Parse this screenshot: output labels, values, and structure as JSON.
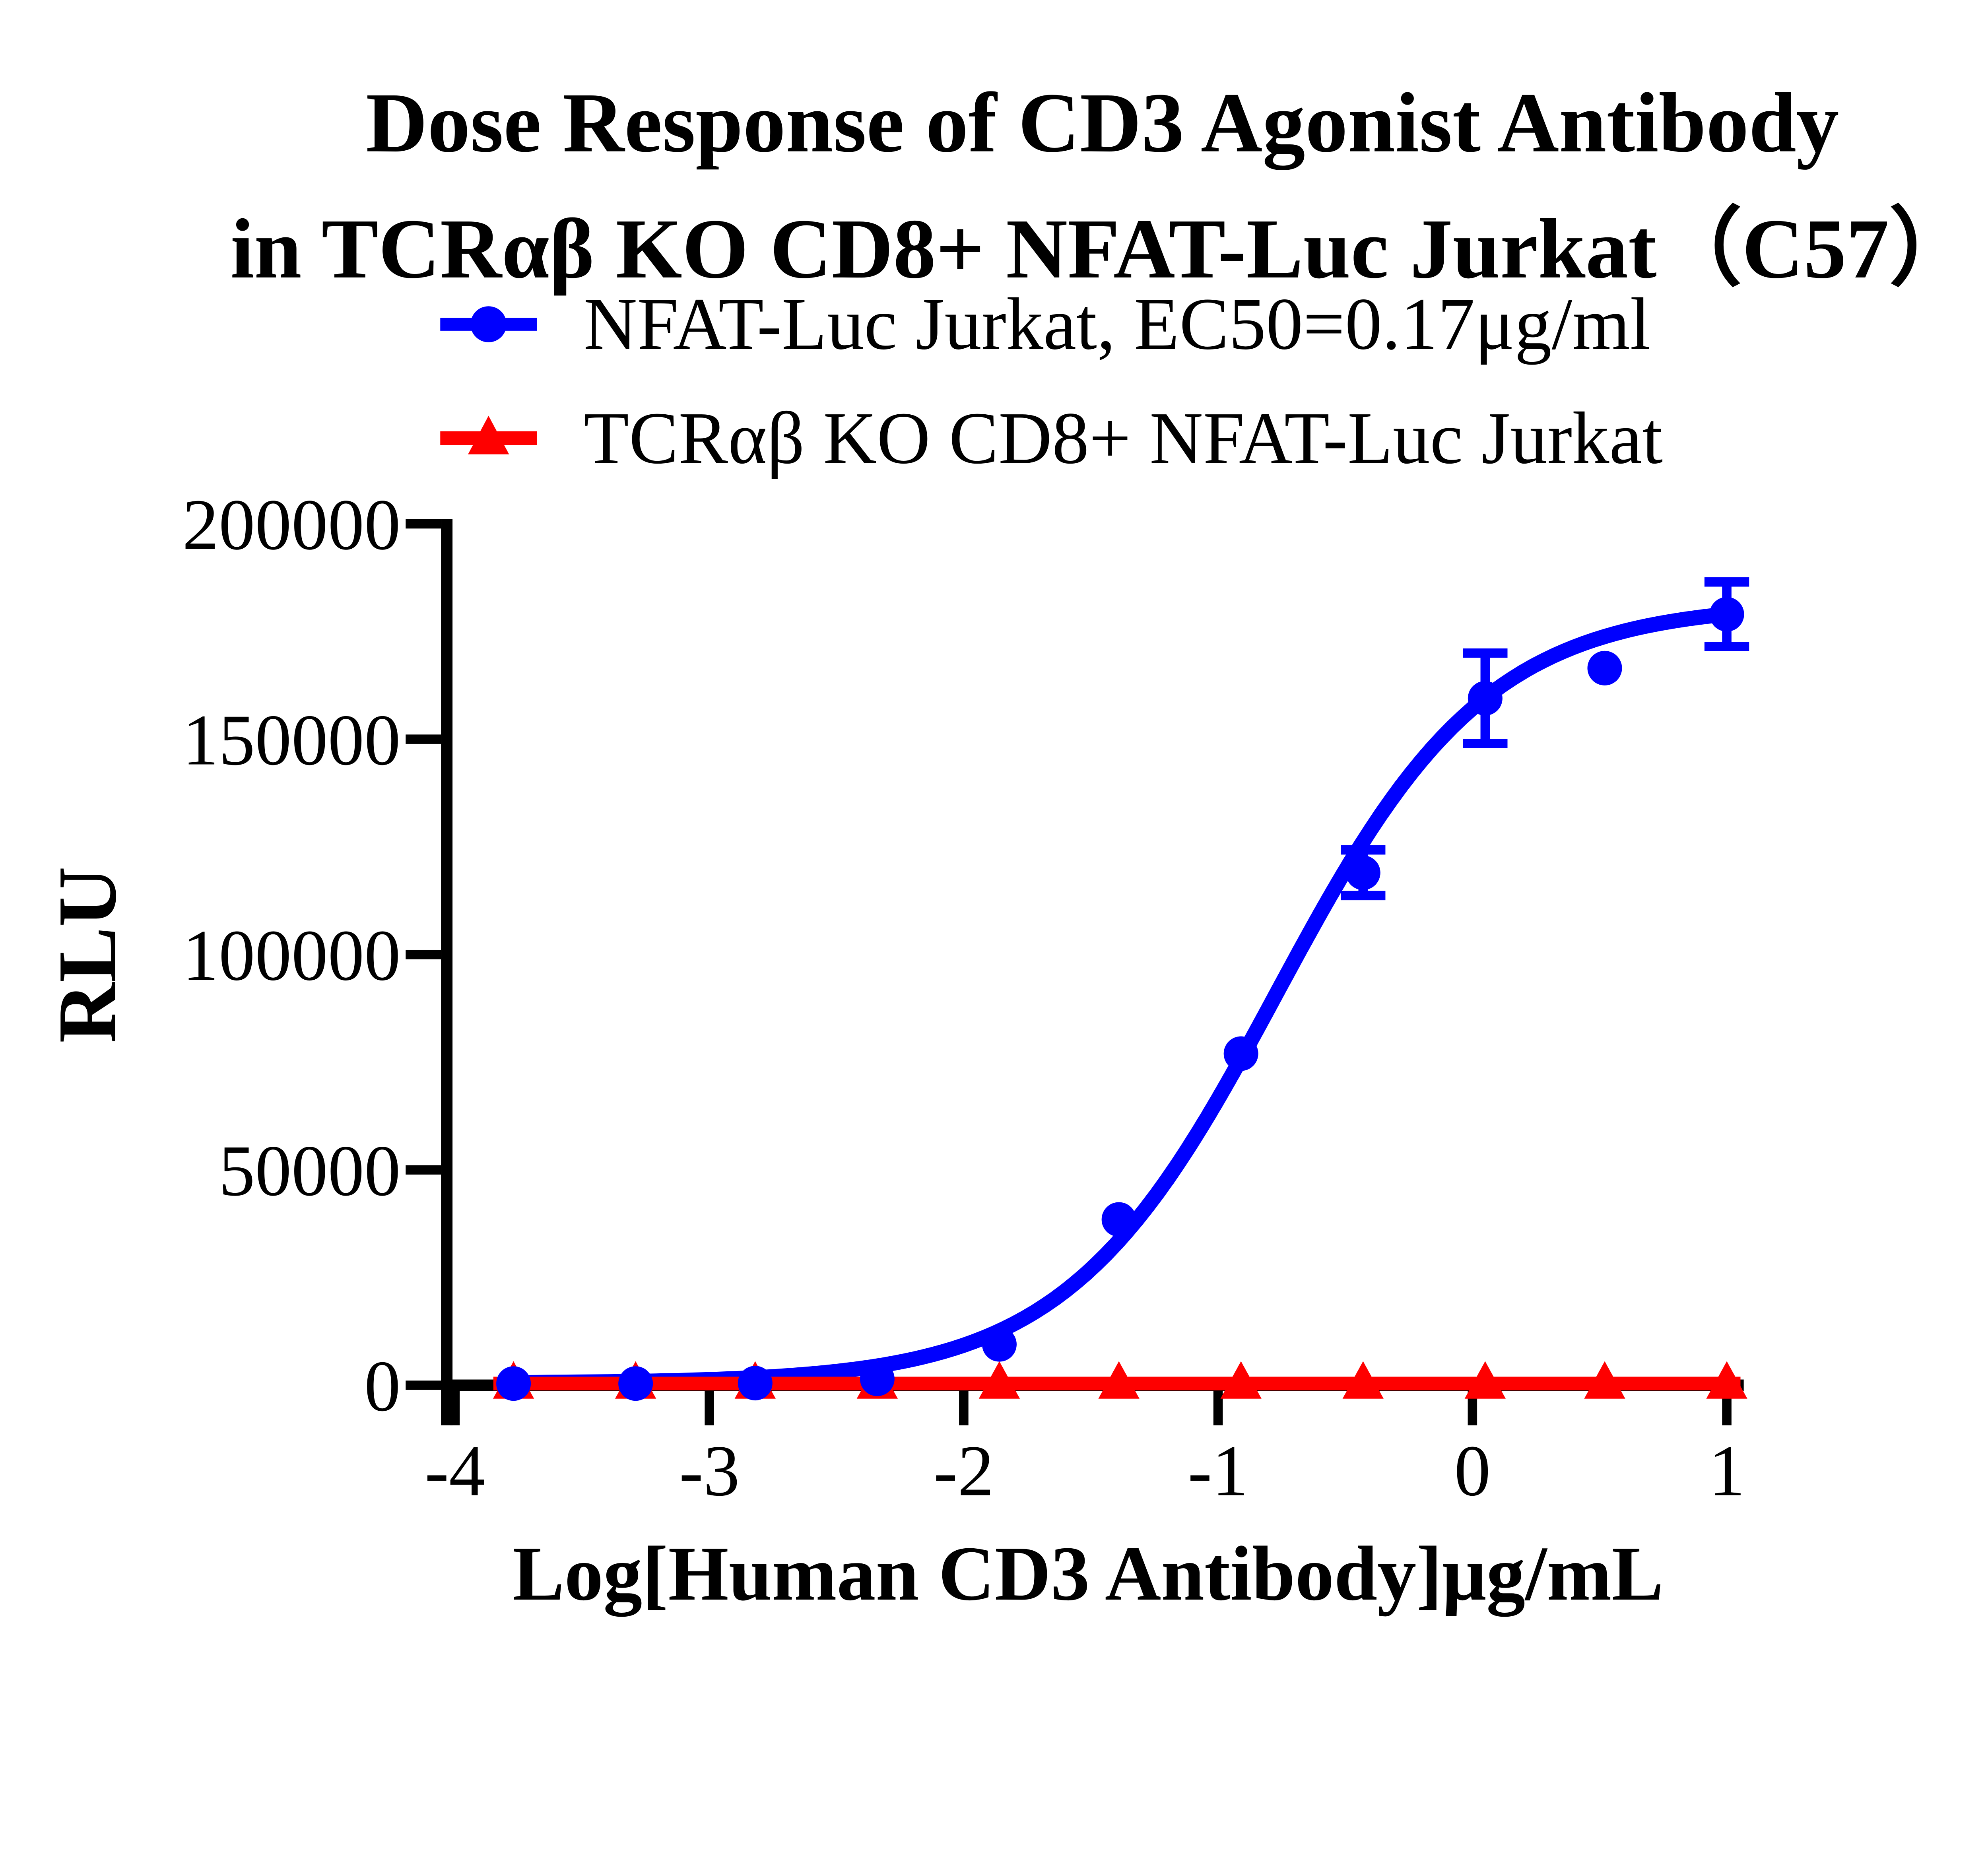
{
  "chart_data": {
    "type": "scatter",
    "title_line1": "Dose Response of CD3 Agonist Antibody",
    "title_line2": "in TCRαβ KO CD8+ NFAT-Luc Jurkat（C57）",
    "xlabel": "Log[Human CD3 Antibody]μg/mL",
    "ylabel": "RLU",
    "xlim": [
      -4,
      1.07
    ],
    "ylim": [
      0,
      200000
    ],
    "x_ticks": [
      -4,
      -3,
      -2,
      -1,
      0,
      1
    ],
    "y_ticks": [
      0,
      50000,
      100000,
      150000,
      200000
    ],
    "grid": false,
    "legend_position": "top-left",
    "axis_color": "#000000",
    "series": [
      {
        "name": "NFAT-Luc Jurkat",
        "label": "NFAT-Luc Jurkat, EC50=0.17μg/ml",
        "marker": "circle",
        "color": "#0000fe",
        "x": [
          -3.77,
          -3.29,
          -2.82,
          -2.34,
          -1.86,
          -1.39,
          -0.91,
          -0.43,
          0.05,
          0.52,
          1.0
        ],
        "y": [
          400,
          400,
          500,
          1500,
          9500,
          38500,
          77000,
          119000,
          159500,
          166500,
          179000
        ],
        "yerr": [
          0,
          0,
          0,
          0,
          0,
          0,
          0,
          5300,
          10500,
          0,
          7500
        ],
        "fit": {
          "type": "logistic4",
          "bottom": 500,
          "top": 181500,
          "logec50": -0.77,
          "hill": 1.05
        }
      },
      {
        "name": "TCRαβ KO CD8+ NFAT-Luc Jurkat",
        "label": "TCRαβ KO CD8+ NFAT-Luc Jurkat",
        "marker": "triangle",
        "color": "#fe0000",
        "x": [
          -3.77,
          -3.29,
          -2.82,
          -2.34,
          -1.86,
          -1.39,
          -0.91,
          -0.43,
          0.05,
          0.52,
          1.0
        ],
        "y": [
          400,
          400,
          400,
          400,
          400,
          400,
          400,
          400,
          400,
          400,
          400
        ],
        "yerr": [
          0,
          0,
          0,
          0,
          0,
          0,
          0,
          0,
          0,
          0,
          0
        ],
        "fit": {
          "type": "flat",
          "value": 400
        }
      }
    ]
  }
}
